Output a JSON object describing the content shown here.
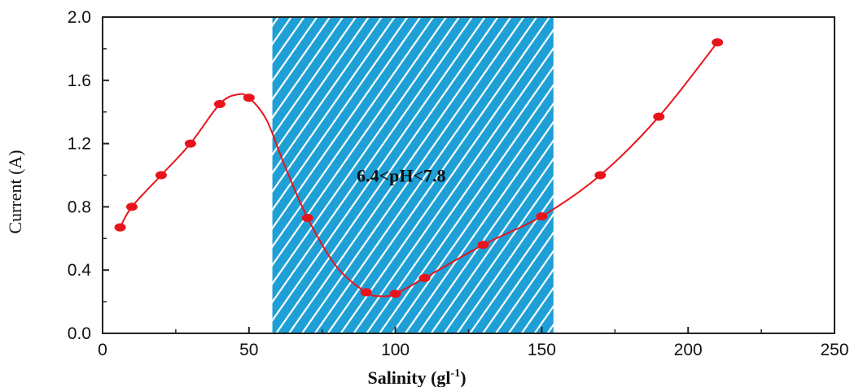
{
  "chart_data": {
    "type": "line",
    "title": "",
    "xlabel": "Salinity (gl",
    "xlabel_sup": "-1",
    "xlabel_close": ")",
    "ylabel": "Current (A)",
    "xlim": [
      0,
      250
    ],
    "ylim": [
      0.0,
      2.0
    ],
    "x_ticks": [
      0,
      50,
      100,
      150,
      200,
      250
    ],
    "x_tick_labels": [
      "0",
      "50",
      "100",
      "150",
      "200",
      "250"
    ],
    "y_ticks": [
      0.0,
      0.4,
      0.8,
      1.2,
      1.6,
      2.0
    ],
    "y_tick_labels": [
      "0.0",
      "0.4",
      "0.8",
      "1.2",
      "1.6",
      "2.0"
    ],
    "grid": false,
    "legend": "none",
    "shaded_region": {
      "x_start": 58,
      "x_end": 154,
      "fill": "#1e9fd6",
      "hatch": "#ffffff"
    },
    "annotation": "6.4<pH<7.8",
    "annotation_pos": {
      "x": 102,
      "y": 0.96
    },
    "series": [
      {
        "color": "#e8141b",
        "x": [
          6,
          10,
          20,
          30,
          40,
          50,
          70,
          90,
          100,
          110,
          130,
          150,
          170,
          190,
          210
        ],
        "y": [
          0.67,
          0.8,
          1.0,
          1.2,
          1.45,
          1.49,
          0.73,
          0.26,
          0.25,
          0.35,
          0.56,
          0.74,
          1.0,
          1.37,
          1.84
        ]
      }
    ],
    "curve_x": [
      6,
      10,
      20,
      30,
      40,
      46,
      50,
      56,
      62,
      70,
      80,
      90,
      95,
      100,
      110,
      130,
      150,
      170,
      190,
      210
    ],
    "curve_y": [
      0.67,
      0.8,
      1.0,
      1.2,
      1.45,
      1.51,
      1.49,
      1.35,
      1.07,
      0.73,
      0.42,
      0.26,
      0.235,
      0.25,
      0.35,
      0.56,
      0.74,
      1.0,
      1.37,
      1.84
    ]
  }
}
